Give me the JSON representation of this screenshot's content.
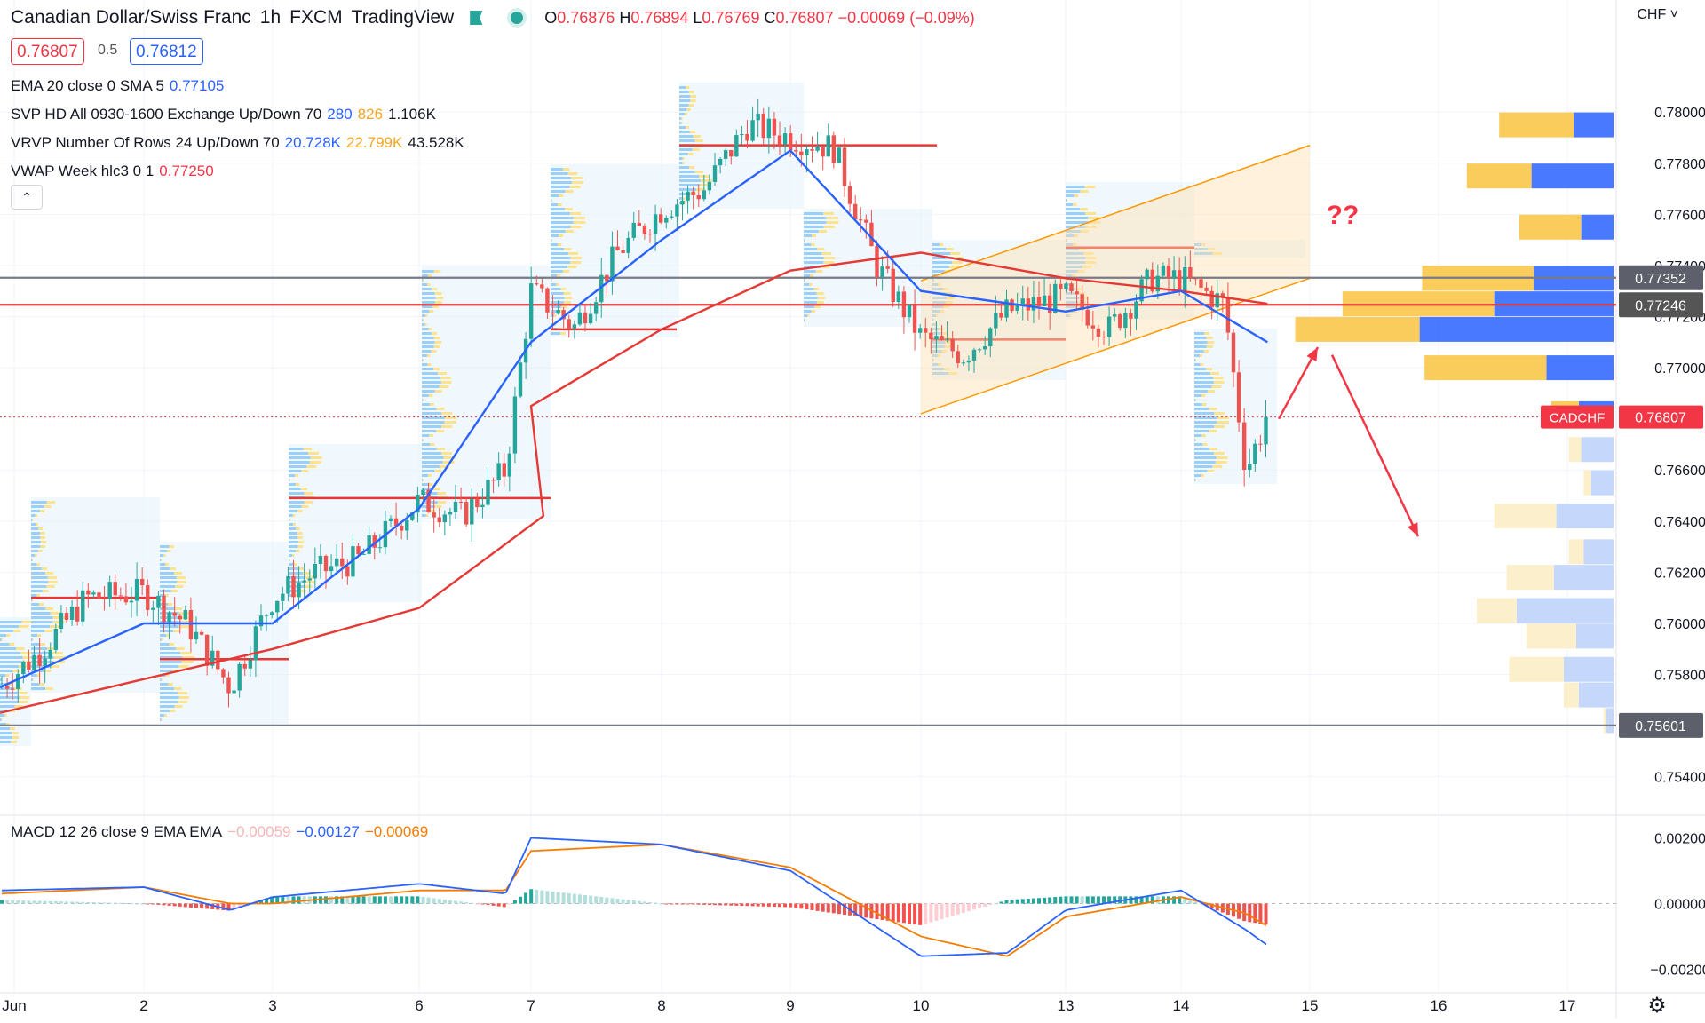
{
  "header": {
    "title": "Canadian Dollar/Swiss Franc",
    "timeframe": "1h",
    "exchange": "FXCM",
    "source": "TradingView",
    "o_label": "O",
    "open": "0.76876",
    "h_label": "H",
    "high": "0.76894",
    "l_label": "L",
    "low": "0.76769",
    "c_label": "C",
    "close": "0.76807",
    "change": "−0.00069 (−0.09%)",
    "sell": "0.76807",
    "spread": "0.5",
    "buy": "0.76812"
  },
  "indicators": [
    {
      "label": "EMA 20 close 0 SMA 5",
      "values": [
        "0.77105"
      ]
    },
    {
      "label": "SVP HD All 0930-1600 Exchange Up/Down 70",
      "values": [
        "280",
        "826",
        "1.106K"
      ]
    },
    {
      "label": "VRVP Number Of Rows 24 Up/Down 70",
      "values": [
        "20.728K",
        "22.799K",
        "43.528K"
      ]
    },
    {
      "label": "VWAP Week hlc3 0 1",
      "values": [
        "0.77250"
      ]
    }
  ],
  "axis": {
    "currency": "CHF ˅",
    "price_ticks": [
      "0.78000",
      "0.77800",
      "0.77600",
      "0.77400",
      "0.77200",
      "0.77000",
      "0.76600",
      "0.76400",
      "0.76200",
      "0.76000",
      "0.75800",
      "0.75400"
    ],
    "date_ticks": [
      "Jun",
      "2",
      "3",
      "6",
      "7",
      "8",
      "9",
      "10",
      "13",
      "14",
      "15",
      "16",
      "17"
    ],
    "macd_ticks": [
      "0.00200",
      "0.00000",
      "−0.00200"
    ],
    "level_labels": [
      "0.77352",
      "0.77246",
      "0.75601"
    ],
    "symbol_tag": "CADCHF",
    "last_price": "0.76807"
  },
  "macd": {
    "label": "MACD 12 26 close 9 EMA EMA",
    "values": [
      "−0.00059",
      "−0.00127",
      "−0.00069"
    ]
  },
  "annotations": {
    "question": "??"
  },
  "colors": {
    "up": "#26a69a",
    "down": "#ef5350",
    "ema": "#2962ff",
    "vwap": "#e53935",
    "level_gray": "#787b86",
    "level_red": "#e53935",
    "vrvp_up": "#2962ff",
    "vrvp_down": "#f5b700",
    "channel": "#ff9800",
    "arrow": "#f23645"
  },
  "chart_data": {
    "type": "candlestick",
    "symbol": "CADCHF",
    "timeframe": "1h",
    "ylim": [
      0.7526,
      0.7823
    ],
    "horizontal_levels": [
      0.77352,
      0.77246,
      0.75601
    ],
    "last_price": 0.76807,
    "dates": [
      "Jun",
      "2",
      "3",
      "6",
      "7",
      "8",
      "9",
      "10",
      "13",
      "14",
      "15",
      "16",
      "17"
    ],
    "close_path": [
      {
        "date": "Jun 1 00:00",
        "price": 0.7575
      },
      {
        "date": "Jun 1 08:00",
        "price": 0.759
      },
      {
        "date": "Jun 1 16:00",
        "price": 0.761
      },
      {
        "date": "Jun 2 00:00",
        "price": 0.7612
      },
      {
        "date": "Jun 2 08:00",
        "price": 0.76
      },
      {
        "date": "Jun 2 16:00",
        "price": 0.7575
      },
      {
        "date": "Jun 3 00:00",
        "price": 0.761
      },
      {
        "date": "Jun 3 08:00",
        "price": 0.762
      },
      {
        "date": "Jun 3 16:00",
        "price": 0.7625
      },
      {
        "date": "Jun 6 00:00",
        "price": 0.7648
      },
      {
        "date": "Jun 6 08:00",
        "price": 0.7642
      },
      {
        "date": "Jun 6 16:00",
        "price": 0.766
      },
      {
        "date": "Jun 7 00:00",
        "price": 0.773
      },
      {
        "date": "Jun 7 08:00",
        "price": 0.7716
      },
      {
        "date": "Jun 7 16:00",
        "price": 0.7745
      },
      {
        "date": "Jun 8 00:00",
        "price": 0.7762
      },
      {
        "date": "Jun 8 08:00",
        "price": 0.777
      },
      {
        "date": "Jun 8 16:00",
        "price": 0.7795
      },
      {
        "date": "Jun 9 00:00",
        "price": 0.779
      },
      {
        "date": "Jun 9 08:00",
        "price": 0.7786
      },
      {
        "date": "Jun 9 16:00",
        "price": 0.774
      },
      {
        "date": "Jun 10 00:00",
        "price": 0.7712
      },
      {
        "date": "Jun 10 08:00",
        "price": 0.7705
      },
      {
        "date": "Jun 10 16:00",
        "price": 0.7722
      },
      {
        "date": "Jun 13 00:00",
        "price": 0.7728
      },
      {
        "date": "Jun 13 08:00",
        "price": 0.7715
      },
      {
        "date": "Jun 13 16:00",
        "price": 0.7735
      },
      {
        "date": "Jun 14 00:00",
        "price": 0.7735
      },
      {
        "date": "Jun 14 08:00",
        "price": 0.7725
      },
      {
        "date": "Jun 14 12:00",
        "price": 0.766
      },
      {
        "date": "Jun 14 16:00",
        "price": 0.76807
      }
    ],
    "ema20_path": [
      {
        "date": "Jun 1",
        "price": 0.7575
      },
      {
        "date": "Jun 2",
        "price": 0.76
      },
      {
        "date": "Jun 3",
        "price": 0.76
      },
      {
        "date": "Jun 6",
        "price": 0.7645
      },
      {
        "date": "Jun 7",
        "price": 0.771
      },
      {
        "date": "Jun 8",
        "price": 0.775
      },
      {
        "date": "Jun 9",
        "price": 0.7785
      },
      {
        "date": "Jun 10",
        "price": 0.773
      },
      {
        "date": "Jun 13",
        "price": 0.7722
      },
      {
        "date": "Jun 14",
        "price": 0.773
      },
      {
        "date": "Jun 14 16:00",
        "price": 0.771
      }
    ],
    "vwap_path": [
      {
        "date": "Jun 1",
        "price": 0.7565
      },
      {
        "date": "Jun 3",
        "price": 0.759
      },
      {
        "date": "Jun 6",
        "price": 0.7606
      },
      {
        "date": "Jun 6 23:00",
        "price": 0.7642
      },
      {
        "date": "Jun 7",
        "price": 0.7685
      },
      {
        "date": "Jun 8",
        "price": 0.7715
      },
      {
        "date": "Jun 9",
        "price": 0.7738
      },
      {
        "date": "Jun 10",
        "price": 0.7745
      },
      {
        "date": "Jun 13",
        "price": 0.7735
      },
      {
        "date": "Jun 14",
        "price": 0.773
      },
      {
        "date": "Jun 14 16:00",
        "price": 0.7725
      }
    ],
    "channel": {
      "start": {
        "date": "Jun 10",
        "lower": 0.7682,
        "upper": 0.7734
      },
      "end": {
        "date": "Jun 15",
        "lower": 0.7735,
        "upper": 0.7787
      }
    },
    "vrvp_rows": [
      {
        "price": 0.7795,
        "up": 0.3,
        "down": 0.16
      },
      {
        "price": 0.7775,
        "up": 0.26,
        "down": 0.33
      },
      {
        "price": 0.7755,
        "up": 0.25,
        "down": 0.13
      },
      {
        "price": 0.7735,
        "up": 0.45,
        "down": 0.32
      },
      {
        "price": 0.7725,
        "up": 0.61,
        "down": 0.48
      },
      {
        "price": 0.7715,
        "up": 0.5,
        "down": 0.78
      },
      {
        "price": 0.77,
        "up": 0.49,
        "down": 0.27
      },
      {
        "price": 0.7682,
        "up": 0.11,
        "down": 0.14
      },
      {
        "price": 0.7668,
        "up": 0.05,
        "down": 0.13
      },
      {
        "price": 0.7655,
        "up": 0.03,
        "down": 0.09
      },
      {
        "price": 0.7642,
        "up": 0.25,
        "down": 0.23
      },
      {
        "price": 0.7628,
        "up": 0.06,
        "down": 0.12
      },
      {
        "price": 0.7618,
        "up": 0.19,
        "down": 0.24
      },
      {
        "price": 0.7605,
        "up": 0.16,
        "down": 0.39
      },
      {
        "price": 0.7595,
        "up": 0.2,
        "down": 0.15
      },
      {
        "price": 0.7582,
        "up": 0.22,
        "down": 0.2
      },
      {
        "price": 0.7572,
        "up": 0.06,
        "down": 0.14
      },
      {
        "price": 0.7562,
        "up": 0.01,
        "down": 0.03
      }
    ],
    "macd_ylim": [
      -0.0025,
      0.0025
    ],
    "macd_path": [
      {
        "date": "Jun 1",
        "macd": 0.0004,
        "signal": 0.0003
      },
      {
        "date": "Jun 2",
        "macd": 0.0005,
        "signal": 0.0005
      },
      {
        "date": "Jun 2 16:00",
        "macd": -0.0002,
        "signal": 0.0
      },
      {
        "date": "Jun 3",
        "macd": 0.0002,
        "signal": 0.0
      },
      {
        "date": "Jun 6",
        "macd": 0.0006,
        "signal": 0.0004
      },
      {
        "date": "Jun 6 16:00",
        "macd": 0.0003,
        "signal": 0.0004
      },
      {
        "date": "Jun 7",
        "macd": 0.002,
        "signal": 0.0016
      },
      {
        "date": "Jun 8",
        "macd": 0.0018,
        "signal": 0.0018
      },
      {
        "date": "Jun 9",
        "macd": 0.001,
        "signal": 0.0011
      },
      {
        "date": "Jun 10",
        "macd": -0.0016,
        "signal": -0.001
      },
      {
        "date": "Jun 10 16:00",
        "macd": -0.0015,
        "signal": -0.0016
      },
      {
        "date": "Jun 13",
        "macd": -0.0002,
        "signal": -0.0004
      },
      {
        "date": "Jun 14",
        "macd": 0.0004,
        "signal": 0.0002
      },
      {
        "date": "Jun 14 12:00",
        "macd": -0.0008,
        "signal": -0.0003
      },
      {
        "date": "Jun 14 16:00",
        "macd": -0.00127,
        "signal": -0.00069
      }
    ]
  }
}
